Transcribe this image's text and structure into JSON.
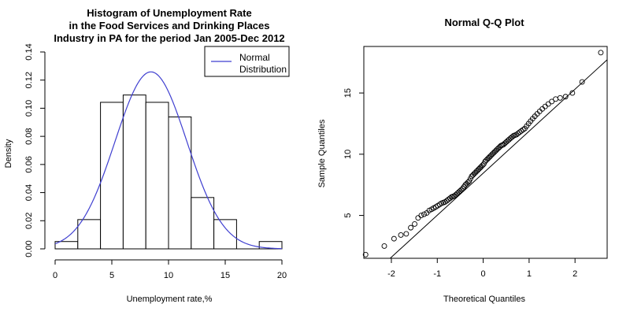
{
  "chart_data": [
    {
      "type": "bar",
      "subtype": "histogram-with-density-curve",
      "title_lines": [
        "Histogram of Unemployment Rate",
        "in the Food Services and Drinking Places",
        "Industry in PA for the period Jan 2005-Dec 2012"
      ],
      "xlabel": "Unemployment rate,%",
      "ylabel": "Density",
      "xlim": [
        0,
        20
      ],
      "ylim": [
        0,
        0.14
      ],
      "x_ticks": [
        0,
        5,
        10,
        15,
        20
      ],
      "x_tick_labels": [
        "0",
        "5",
        "10",
        "15",
        "20"
      ],
      "y_ticks": [
        0,
        0.02,
        0.04,
        0.06,
        0.08,
        0.1,
        0.12,
        0.14
      ],
      "y_tick_labels": [
        "0.00",
        "0.02",
        "0.04",
        "0.06",
        "0.08",
        "0.10",
        "0.12",
        "0.14"
      ],
      "bins": [
        {
          "start": 0,
          "end": 2,
          "density": 0.0052
        },
        {
          "start": 2,
          "end": 4,
          "density": 0.0208
        },
        {
          "start": 4,
          "end": 6,
          "density": 0.1042
        },
        {
          "start": 6,
          "end": 8,
          "density": 0.1094
        },
        {
          "start": 8,
          "end": 10,
          "density": 0.1042
        },
        {
          "start": 10,
          "end": 12,
          "density": 0.0938
        },
        {
          "start": 12,
          "end": 14,
          "density": 0.0365
        },
        {
          "start": 14,
          "end": 16,
          "density": 0.0208
        },
        {
          "start": 16,
          "end": 18,
          "density": 0
        },
        {
          "start": 18,
          "end": 20,
          "density": 0.0052
        }
      ],
      "curve": {
        "name": "Normal Distribution",
        "legend_lines": [
          "Normal",
          "Distribution"
        ],
        "color": "#3f3fd0",
        "mean": 8.45,
        "sd": 3.17
      },
      "legend_position": "top-right",
      "grid": false
    },
    {
      "type": "scatter",
      "subtype": "normal-qq-plot",
      "title": "Normal Q-Q Plot",
      "xlabel": "Theoretical Quantiles",
      "ylabel": "Sample Quantiles",
      "xlim": [
        -2.6,
        2.7
      ],
      "ylim": [
        1.5,
        18.8
      ],
      "x_ticks": [
        -2,
        -1,
        0,
        1,
        2
      ],
      "x_tick_labels": [
        "-2",
        "-1",
        "0",
        "1",
        "2"
      ],
      "y_ticks": [
        5,
        10,
        15
      ],
      "y_tick_labels": [
        "5",
        "10",
        "15"
      ],
      "reference_line": {
        "intercept": 8.45,
        "slope": 3.43
      },
      "sample_size": 96,
      "sorted_sample_values": [
        1.8,
        2.5,
        3.1,
        3.4,
        3.5,
        4.0,
        4.3,
        4.8,
        5.0,
        5.1,
        5.2,
        5.4,
        5.5,
        5.6,
        5.7,
        5.8,
        5.9,
        6.0,
        6.05,
        6.1,
        6.2,
        6.3,
        6.4,
        6.5,
        6.55,
        6.6,
        6.7,
        6.8,
        6.9,
        7.0,
        7.1,
        7.2,
        7.35,
        7.5,
        7.6,
        7.7,
        7.8,
        8.0,
        8.2,
        8.3,
        8.4,
        8.5,
        8.6,
        8.7,
        8.8,
        8.9,
        9.0,
        9.1,
        9.2,
        9.4,
        9.5,
        9.6,
        9.7,
        9.8,
        9.9,
        10.0,
        10.1,
        10.2,
        10.3,
        10.4,
        10.5,
        10.6,
        10.7,
        10.75,
        10.8,
        10.9,
        11.0,
        11.1,
        11.2,
        11.3,
        11.4,
        11.5,
        11.55,
        11.6,
        11.7,
        11.8,
        11.9,
        12.0,
        12.1,
        12.3,
        12.5,
        12.7,
        12.9,
        13.1,
        13.3,
        13.5,
        13.7,
        13.9,
        14.1,
        14.3,
        14.5,
        14.6,
        14.7,
        15.0,
        15.9,
        18.3
      ],
      "grid": false
    }
  ]
}
